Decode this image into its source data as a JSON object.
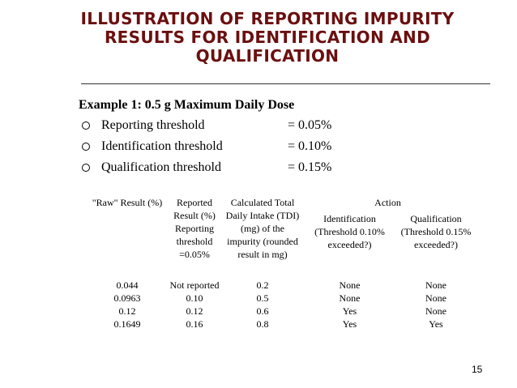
{
  "title": "Illustration of Reporting Impurity Results for Identification and Qualification",
  "example_heading": "Example 1: 0.5 g Maximum Daily Dose",
  "thresholds": [
    {
      "label": "Reporting threshold",
      "value": "= 0.05%"
    },
    {
      "label": "Identification threshold",
      "value": "= 0.10%"
    },
    {
      "label": "Qualification threshold",
      "value": "= 0.15%"
    }
  ],
  "table": {
    "headers": {
      "raw": "\"Raw\" Result (%)",
      "reported": "Reported Result (%) Reporting threshold =0.05%",
      "tdi": "Calculated Total Daily Intake (TDI) (mg) of the impurity (rounded result in mg)",
      "action": "Action",
      "identification": "Identification (Threshold 0.10% exceeded?)",
      "qualification": "Qualification (Threshold 0.15% exceeded?)"
    },
    "rows": [
      {
        "raw": "0.044",
        "reported": "Not reported",
        "tdi": "0.2",
        "identification": "None",
        "qualification": "None"
      },
      {
        "raw": "0.0963",
        "reported": "0.10",
        "tdi": "0.5",
        "identification": "None",
        "qualification": "None"
      },
      {
        "raw": "0.12",
        "reported": "0.12",
        "tdi": "0.6",
        "identification": "Yes",
        "qualification": "None"
      },
      {
        "raw": "0.1649",
        "reported": "0.16",
        "tdi": "0.8",
        "identification": "Yes",
        "qualification": "Yes"
      }
    ]
  },
  "page_number": "15",
  "colors": {
    "title": "#6b0f0f"
  }
}
